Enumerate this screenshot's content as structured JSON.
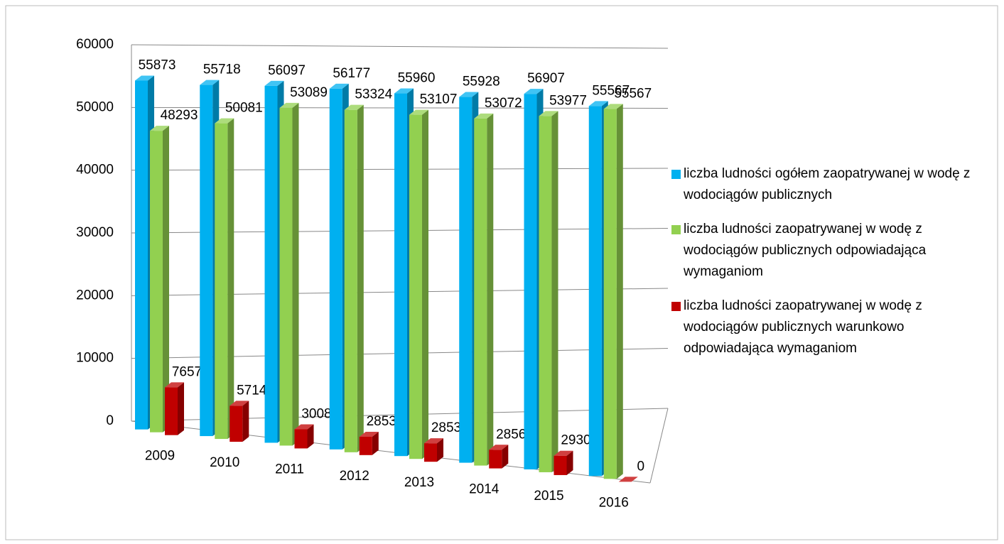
{
  "chart_data": {
    "type": "bar3d",
    "categories": [
      "2009",
      "2010",
      "2011",
      "2012",
      "2013",
      "2014",
      "2015",
      "2016"
    ],
    "series": [
      {
        "name": "liczba ludności ogółem zaopatrywanej w wodę z wodociągów publicznych",
        "color": "#00b0f0",
        "values": [
          55873,
          55718,
          56097,
          56177,
          55960,
          55928,
          56907,
          55567
        ]
      },
      {
        "name": "liczba ludności zaopatrywanej w wodę  z wodociągów publicznych odpowiadająca wymaganiom",
        "color": "#92d050",
        "values": [
          48293,
          50081,
          53089,
          53324,
          53107,
          53072,
          53977,
          55567
        ]
      },
      {
        "name": "liczba ludności zaopatrywanej w wodę  z wodociągów publicznych warunkowo odpowiadająca wymaganiom",
        "color": "#c00000",
        "values": [
          7657,
          5714,
          3008,
          2853,
          2853,
          2856,
          2930,
          0
        ]
      }
    ],
    "ylim": [
      0,
      60000
    ],
    "yticks": [
      0,
      10000,
      20000,
      30000,
      40000,
      50000,
      60000
    ],
    "grid": true,
    "legend": "right"
  }
}
